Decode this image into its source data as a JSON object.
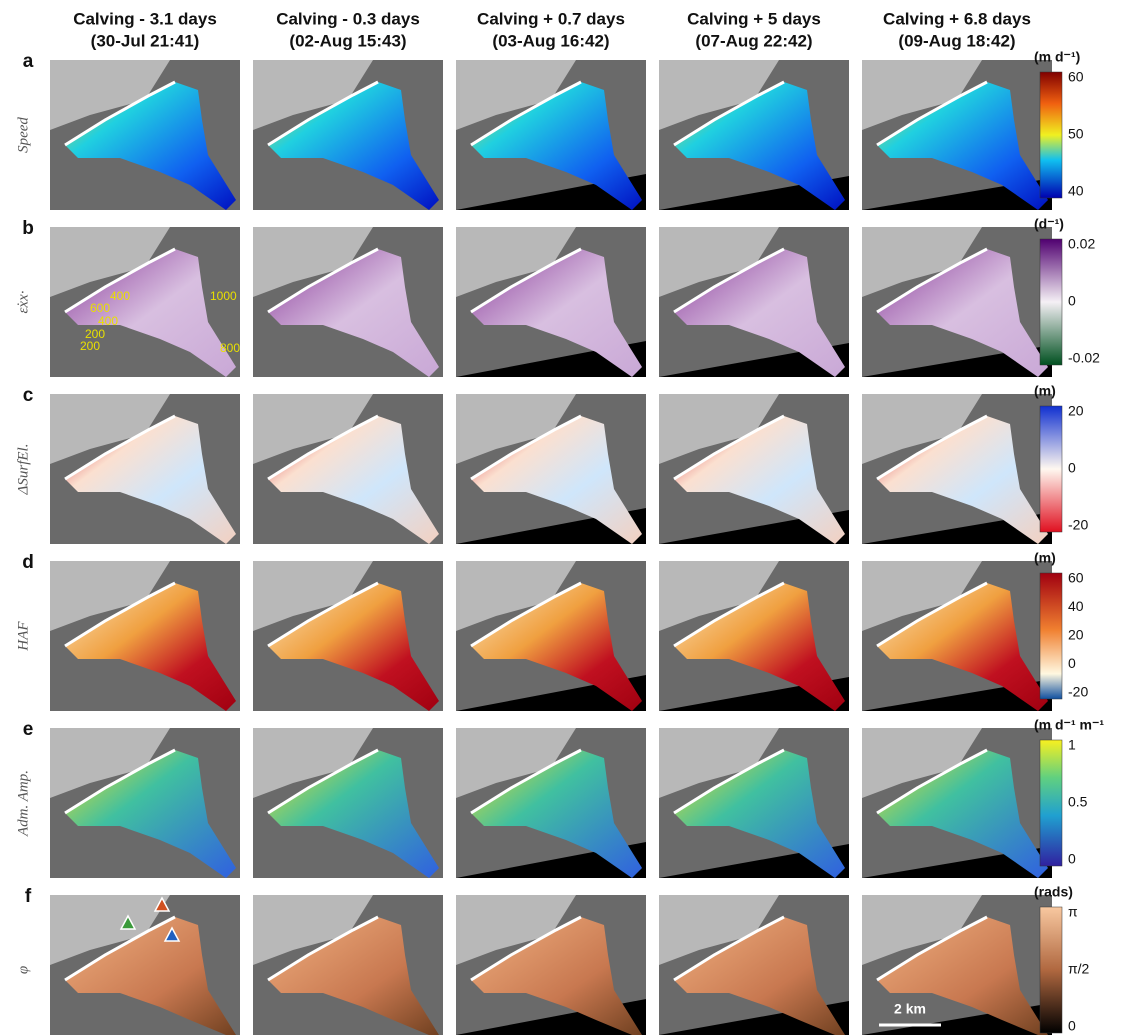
{
  "columns": [
    {
      "title": "Calving - 3.1 days",
      "subtitle": "(30-Jul 21:41)"
    },
    {
      "title": "Calving - 0.3 days",
      "subtitle": "(02-Aug 15:43)"
    },
    {
      "title": "Calving + 0.7 days",
      "subtitle": "(03-Aug 16:42)"
    },
    {
      "title": "Calving + 5 days",
      "subtitle": "(07-Aug 22:42)"
    },
    {
      "title": "Calving + 6.8 days",
      "subtitle": "(09-Aug 18:42)"
    }
  ],
  "rows": [
    {
      "letter": "a",
      "label": "Speed",
      "unit": "(m d⁻¹)",
      "ticks": [
        "60",
        "50",
        "40"
      ]
    },
    {
      "letter": "b",
      "label": "ε̇xx·",
      "unit": "(d⁻¹)",
      "ticks": [
        "0.02",
        "0",
        "-0.02"
      ]
    },
    {
      "letter": "c",
      "label": "ΔSurfEl.",
      "unit": "(m)",
      "ticks": [
        "20",
        "0",
        "-20"
      ]
    },
    {
      "letter": "d",
      "label": "HAF",
      "unit": "(m)",
      "ticks": [
        "60",
        "40",
        "20",
        "0",
        "-20"
      ]
    },
    {
      "letter": "e",
      "label": "Adm. Amp.",
      "unit": "(m d⁻¹ m⁻¹",
      "ticks": [
        "1",
        "0.5",
        "0"
      ]
    },
    {
      "letter": "f",
      "label": "φ",
      "unit": "(rads)",
      "ticks": [
        "π",
        "π/2",
        "0"
      ]
    }
  ],
  "contour_labels": [
    "400",
    "1000",
    "600",
    "400",
    "200",
    "200",
    "800"
  ],
  "scale_bar": "2 km"
}
